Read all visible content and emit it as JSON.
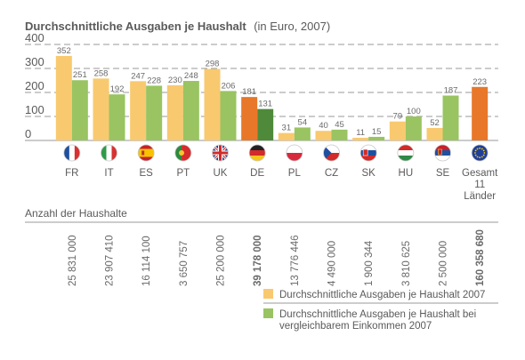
{
  "chart_data": {
    "type": "bar",
    "title": "Durchschnittliche Ausgaben je Haushalt",
    "subtitle": "(in Euro, 2007)",
    "ylim": [
      0,
      400
    ],
    "yticks": [
      "400",
      "300",
      "200",
      "100",
      "0"
    ],
    "grid": true,
    "categories": [
      {
        "label": "FR",
        "flag": "france-flag-icon"
      },
      {
        "label": "IT",
        "flag": "italy-flag-icon"
      },
      {
        "label": "ES",
        "flag": "spain-flag-icon"
      },
      {
        "label": "PT",
        "flag": "portugal-flag-icon"
      },
      {
        "label": "UK",
        "flag": "uk-flag-icon"
      },
      {
        "label": "DE",
        "flag": "germany-flag-icon"
      },
      {
        "label": "PL",
        "flag": "poland-flag-icon"
      },
      {
        "label": "CZ",
        "flag": "czech-flag-icon"
      },
      {
        "label": "SK",
        "flag": "slovakia-flag-icon"
      },
      {
        "label": "HU",
        "flag": "hungary-flag-icon"
      },
      {
        "label": "SE",
        "flag": "serbia-flag-icon"
      },
      {
        "label": "Gesamt\n11\nLänder",
        "flag": "eu-flag-icon"
      }
    ],
    "series": [
      {
        "name": "Durchschnittliche Ausgaben je Haushalt 2007",
        "values": [
          352,
          258,
          247,
          230,
          298,
          181,
          31,
          40,
          11,
          79,
          52,
          223
        ]
      },
      {
        "name": "Durchschnittliche Ausgaben je Haushalt bei vergleichbarem Einkommen 2007",
        "values": [
          251,
          192,
          228,
          248,
          206,
          131,
          54,
          45,
          15,
          100,
          187,
          null
        ]
      }
    ],
    "highlight_index": 5,
    "total_index": 11,
    "households_label": "Anzahl der Haushalte",
    "households": [
      "25 831 000",
      "23 907 410",
      "16 114 100",
      "3 650 757",
      "25 200 000",
      "39 178 000",
      "13 776 446",
      "4 490 000",
      "1 900 344",
      "3 810 625",
      "2 500 000",
      "160 358 680"
    ],
    "legend": [
      "Durchschnittliche Ausgaben je Haushalt 2007",
      "Durchschnittliche Ausgaben je Haushalt bei\nvergleichbarem Einkommen 2007"
    ],
    "colors": {
      "series1": "#f9c96f",
      "series2": "#99c461",
      "de_series1": "#e8772a",
      "de_series2": "#4f8a3a",
      "total": "#e8772a",
      "de_households": "#6a9a2b",
      "total_households": "#e8772a",
      "grid": "#9a9a9a",
      "text": "#5a5a5a"
    }
  }
}
